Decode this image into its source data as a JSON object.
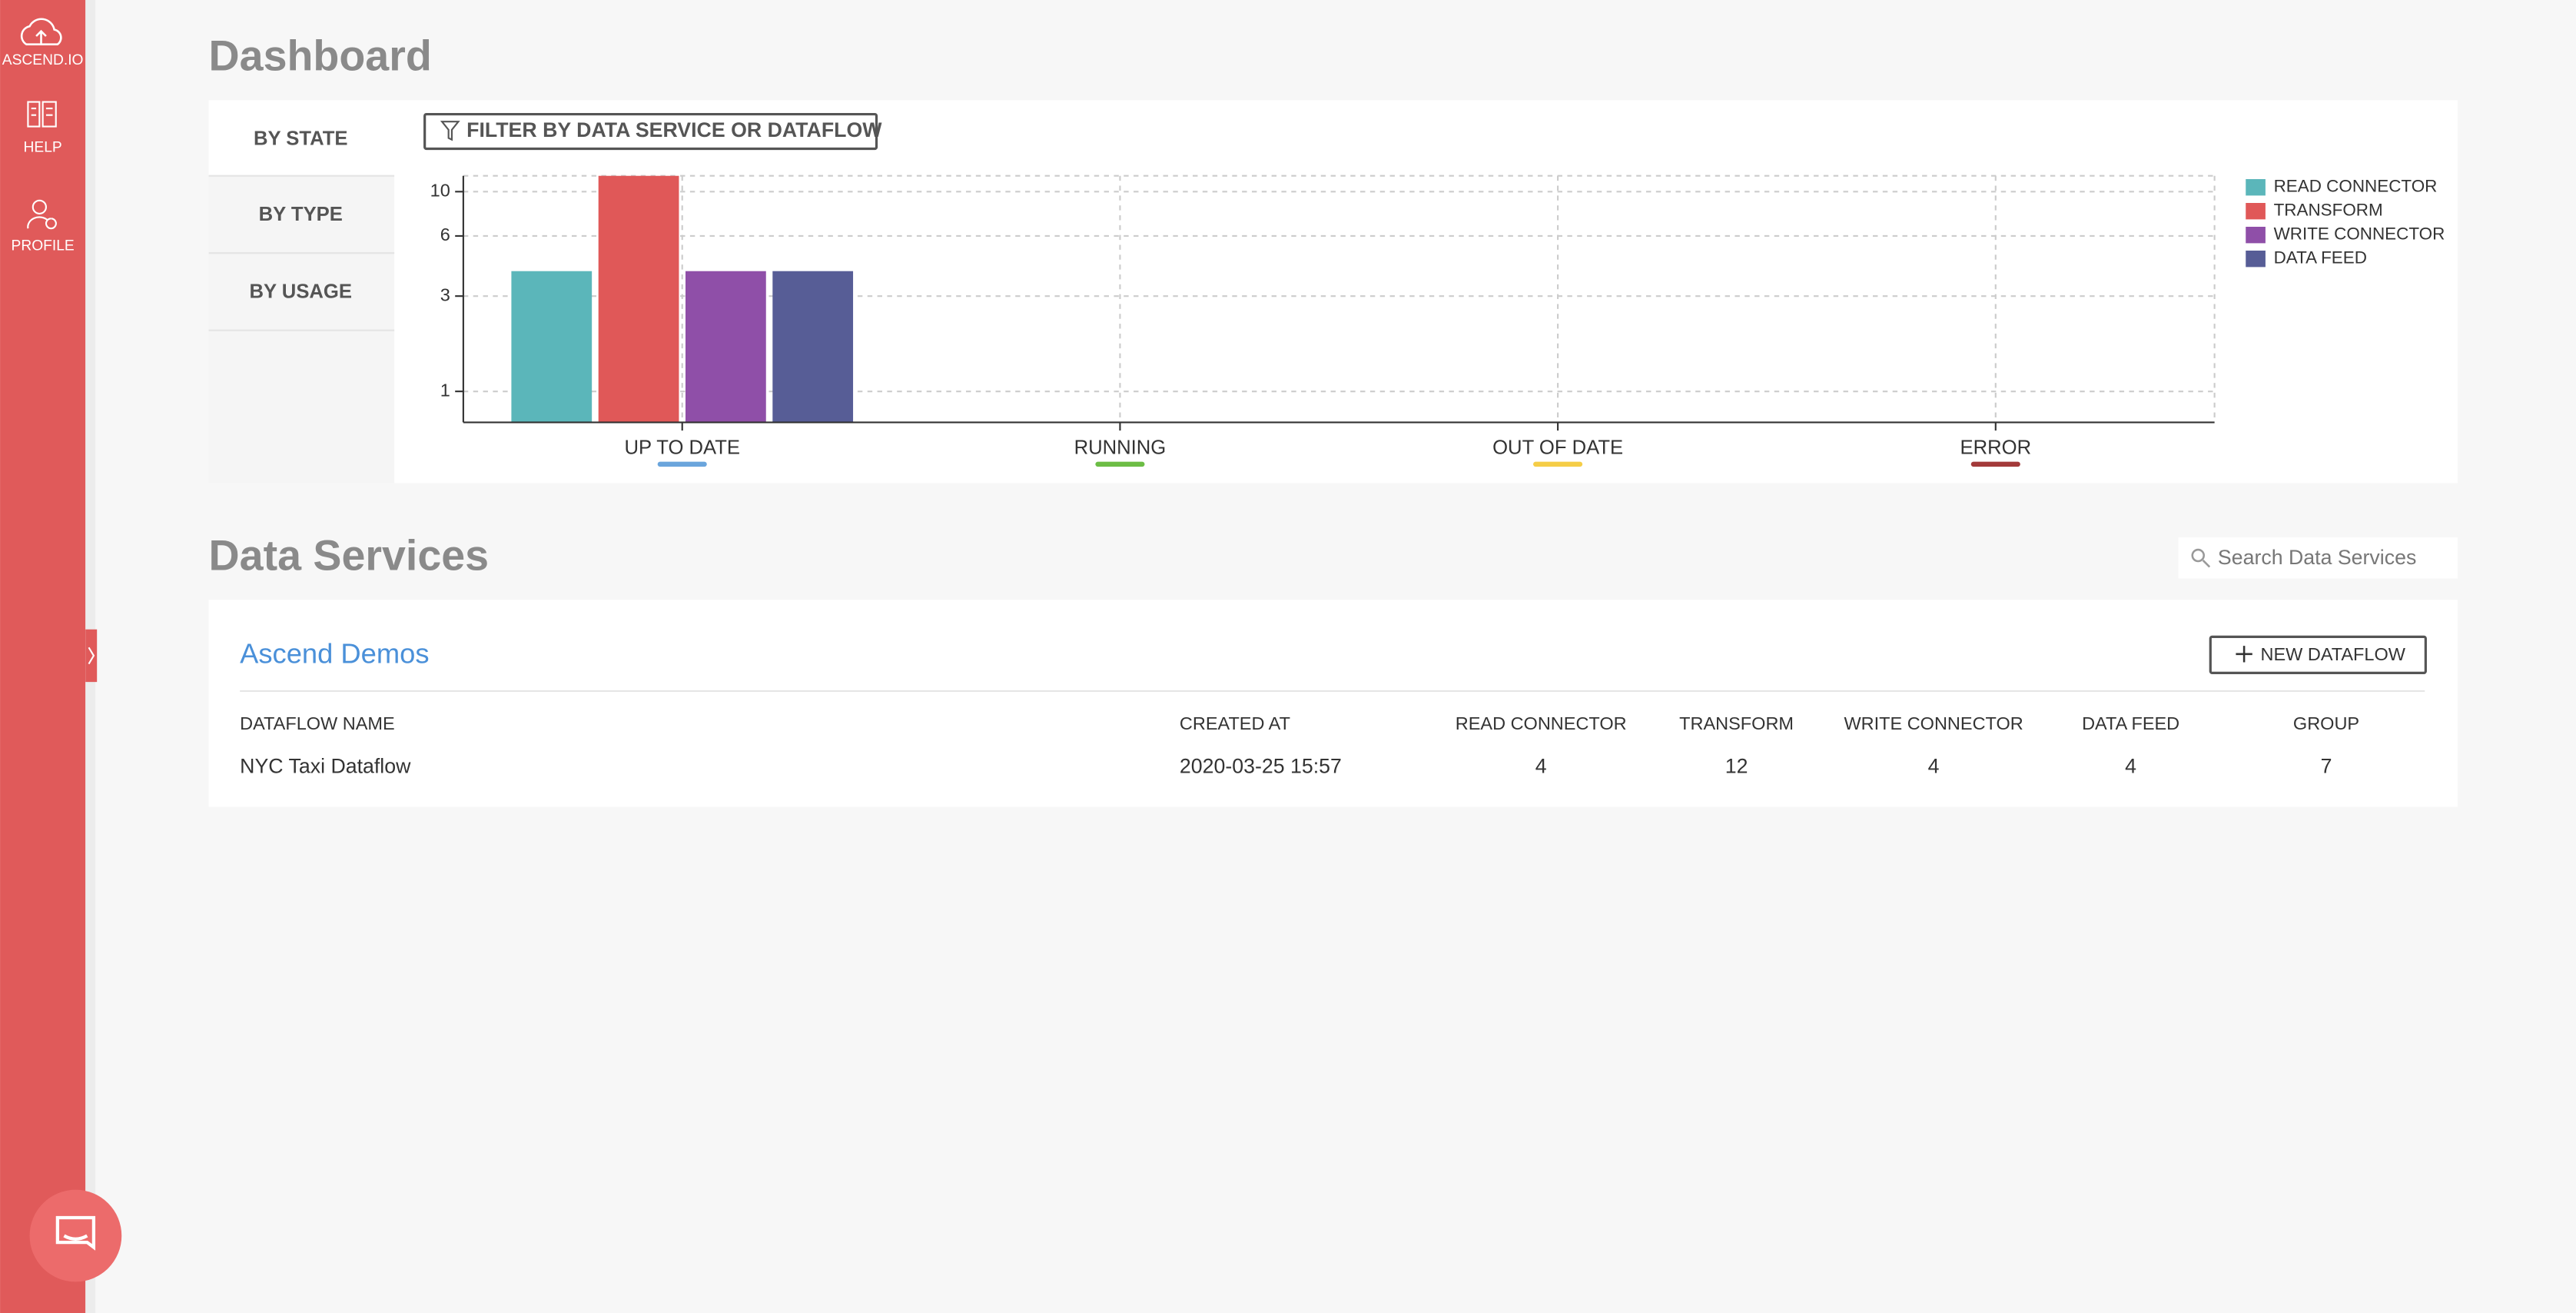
{
  "sidebar": {
    "logo": "ASCEND.IO",
    "items": [
      "HELP",
      "PROFILE"
    ]
  },
  "dashboard": {
    "title": "Dashboard",
    "tabs": [
      "BY STATE",
      "BY TYPE",
      "BY USAGE"
    ],
    "filter_button": "FILTER BY DATA SERVICE OR DATAFLOW"
  },
  "chart_data": {
    "type": "bar",
    "categories": [
      "UP TO DATE",
      "RUNNING",
      "OUT OF DATE",
      "ERROR"
    ],
    "category_colors": [
      "#6aa5dc",
      "#6cbd45",
      "#f5cd47",
      "#a33a3a"
    ],
    "series": [
      {
        "name": "READ CONNECTOR",
        "color": "#5bb6ba",
        "values": [
          4,
          0,
          0,
          0
        ]
      },
      {
        "name": "TRANSFORM",
        "color": "#e05858",
        "values": [
          12,
          0,
          0,
          0
        ]
      },
      {
        "name": "WRITE CONNECTOR",
        "color": "#8f4fa8",
        "values": [
          4,
          0,
          0,
          0
        ]
      },
      {
        "name": "DATA FEED",
        "color": "#575d96",
        "values": [
          4,
          0,
          0,
          0
        ]
      }
    ],
    "ylim": [
      0.7,
      12
    ],
    "yticks": [
      1,
      3,
      6,
      10
    ],
    "log_scale": true,
    "grid": true,
    "legend": "right"
  },
  "data_services": {
    "title": "Data Services",
    "search_placeholder": "Search Data Services",
    "services": [
      {
        "name": "Ascend Demos",
        "button": "NEW DATAFLOW",
        "table": {
          "columns": [
            "DATAFLOW NAME",
            "CREATED AT",
            "READ CONNECTOR",
            "TRANSFORM",
            "WRITE CONNECTOR",
            "DATA FEED",
            "GROUP"
          ],
          "rows": [
            [
              "NYC Taxi Dataflow",
              "2020-03-25 15:57",
              4,
              12,
              4,
              4,
              7
            ]
          ]
        }
      }
    ]
  }
}
